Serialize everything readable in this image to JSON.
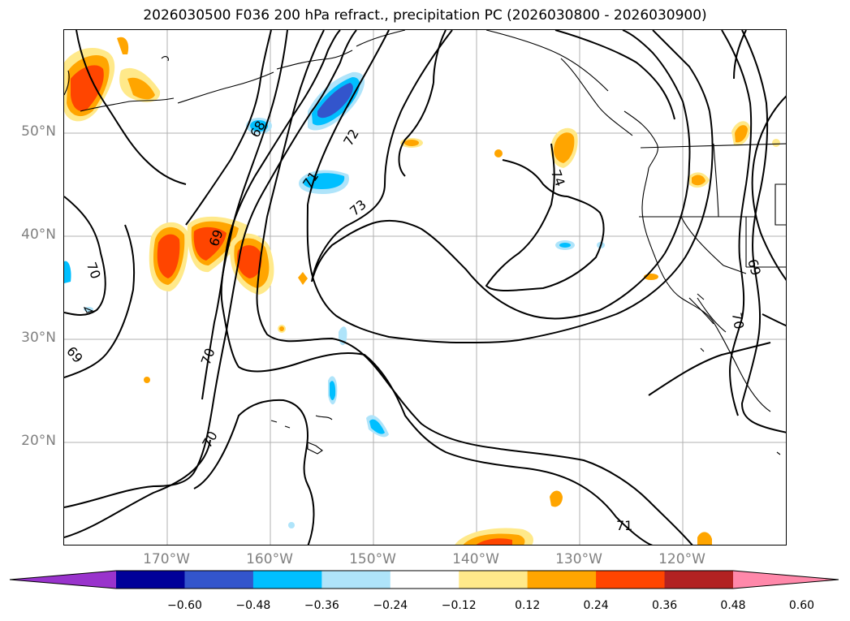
{
  "title": "2026030500 F036 200 hPa refract., precipitation PC (2026030800 - 2026030900)",
  "lat_labels": [
    "50°N",
    "40°N",
    "30°N",
    "20°N"
  ],
  "lon_labels": [
    "170°W",
    "160°W",
    "150°W",
    "140°W",
    "130°W",
    "120°W"
  ],
  "contour_labels": [
    "68",
    "72",
    "71",
    "73",
    "74",
    "69",
    "70",
    "69",
    "70",
    "70",
    "71",
    "69",
    "70"
  ],
  "colorbar": {
    "ticks": [
      "−0.60",
      "−0.48",
      "−0.36",
      "−0.24",
      "−0.12",
      "0.12",
      "0.24",
      "0.36",
      "0.48",
      "0.60"
    ],
    "colors": [
      "#9933cc",
      "#000099",
      "#3355cc",
      "#00bfff",
      "#afe4fa",
      "#ffffff",
      "#ffe98a",
      "#ffa500",
      "#ff4500",
      "#b22222",
      "#ff88aa"
    ]
  }
}
